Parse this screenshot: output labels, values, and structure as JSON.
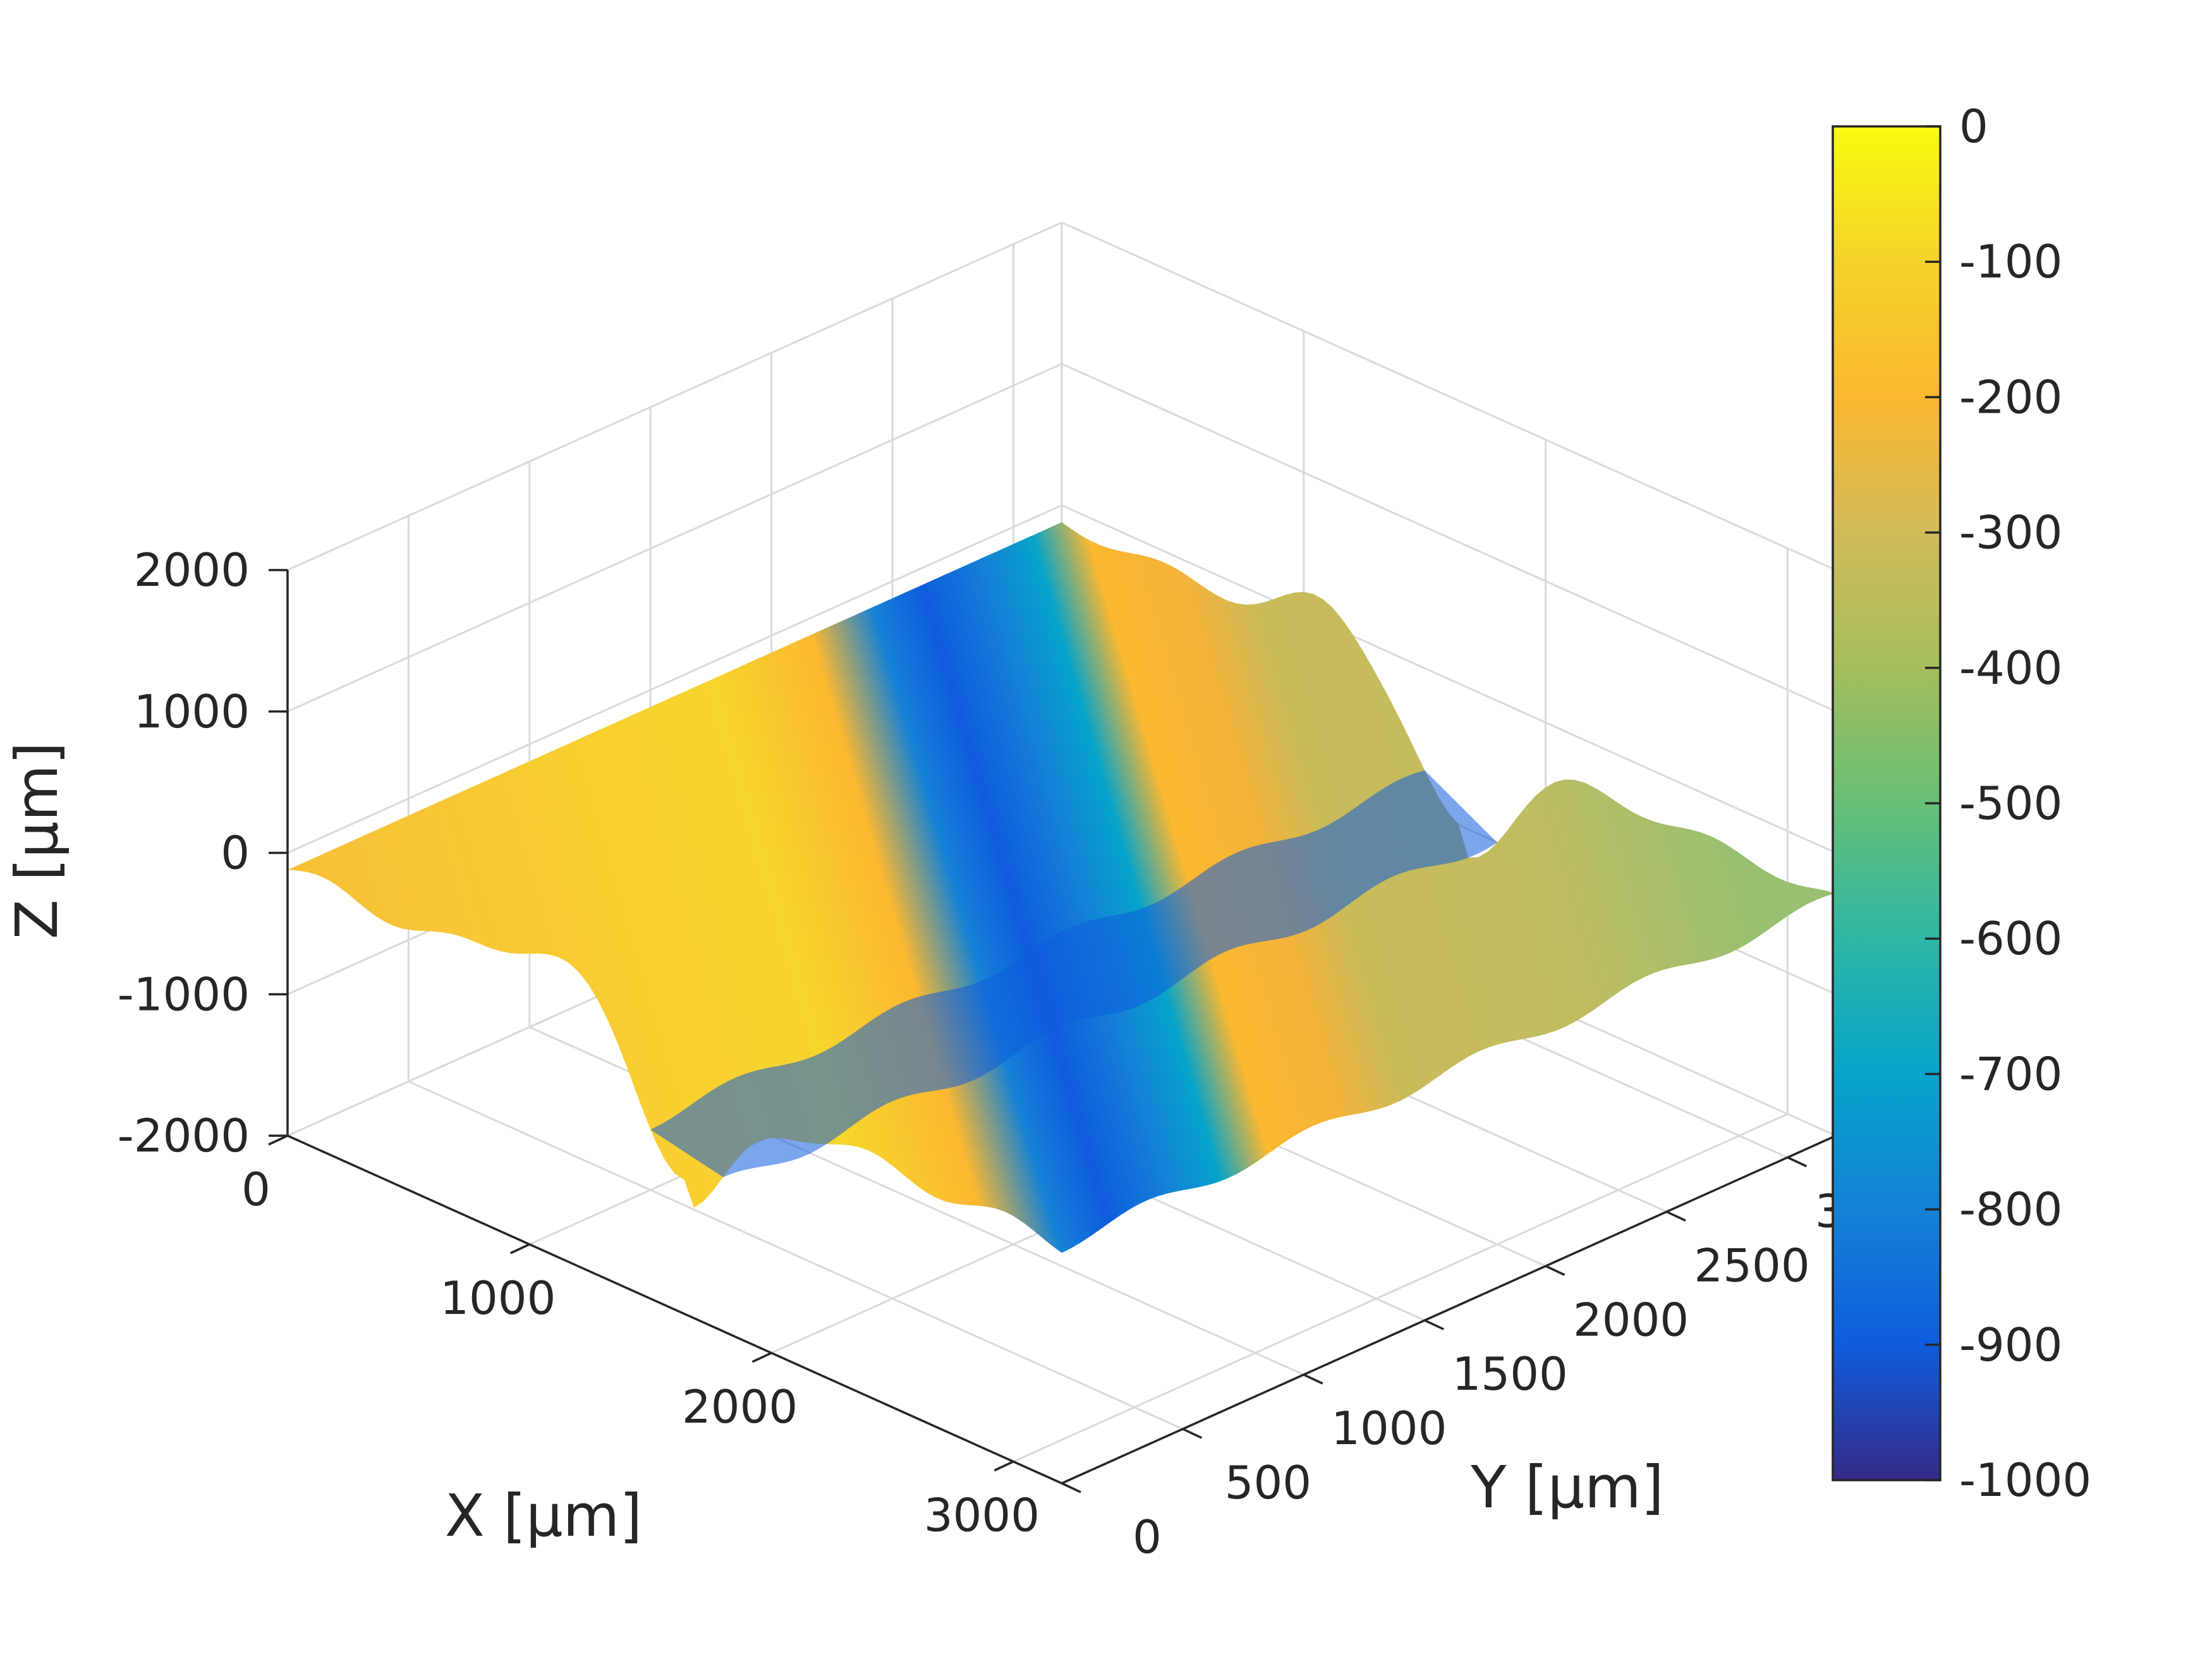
{
  "chart_data": {
    "type": "surface",
    "title": "",
    "xlabel": "X [μm]",
    "ylabel": "Y [μm]",
    "zlabel": "Z [μm]",
    "xlim": [
      0,
      3200
    ],
    "ylim": [
      0,
      3200
    ],
    "zlim": [
      -2000,
      2000
    ],
    "x_ticks": [
      0,
      1000,
      2000,
      3000
    ],
    "y_ticks": [
      0,
      500,
      1000,
      1500,
      2000,
      2500,
      3000
    ],
    "z_ticks": [
      -2000,
      -1000,
      0,
      1000,
      2000
    ],
    "grid": true,
    "colormap": "parula",
    "colorbar": {
      "location": "right",
      "limits": [
        -1000,
        0
      ],
      "ticks": [
        0,
        -100,
        -200,
        -300,
        -400,
        -500,
        -600,
        -700,
        -800,
        -900,
        -1000
      ]
    },
    "surface_profile": {
      "description_note": "",
      "groove_center_x": 1650,
      "groove_depth_z": -900,
      "left_plateau_z": -120,
      "right_plateau_z": -320
    }
  }
}
